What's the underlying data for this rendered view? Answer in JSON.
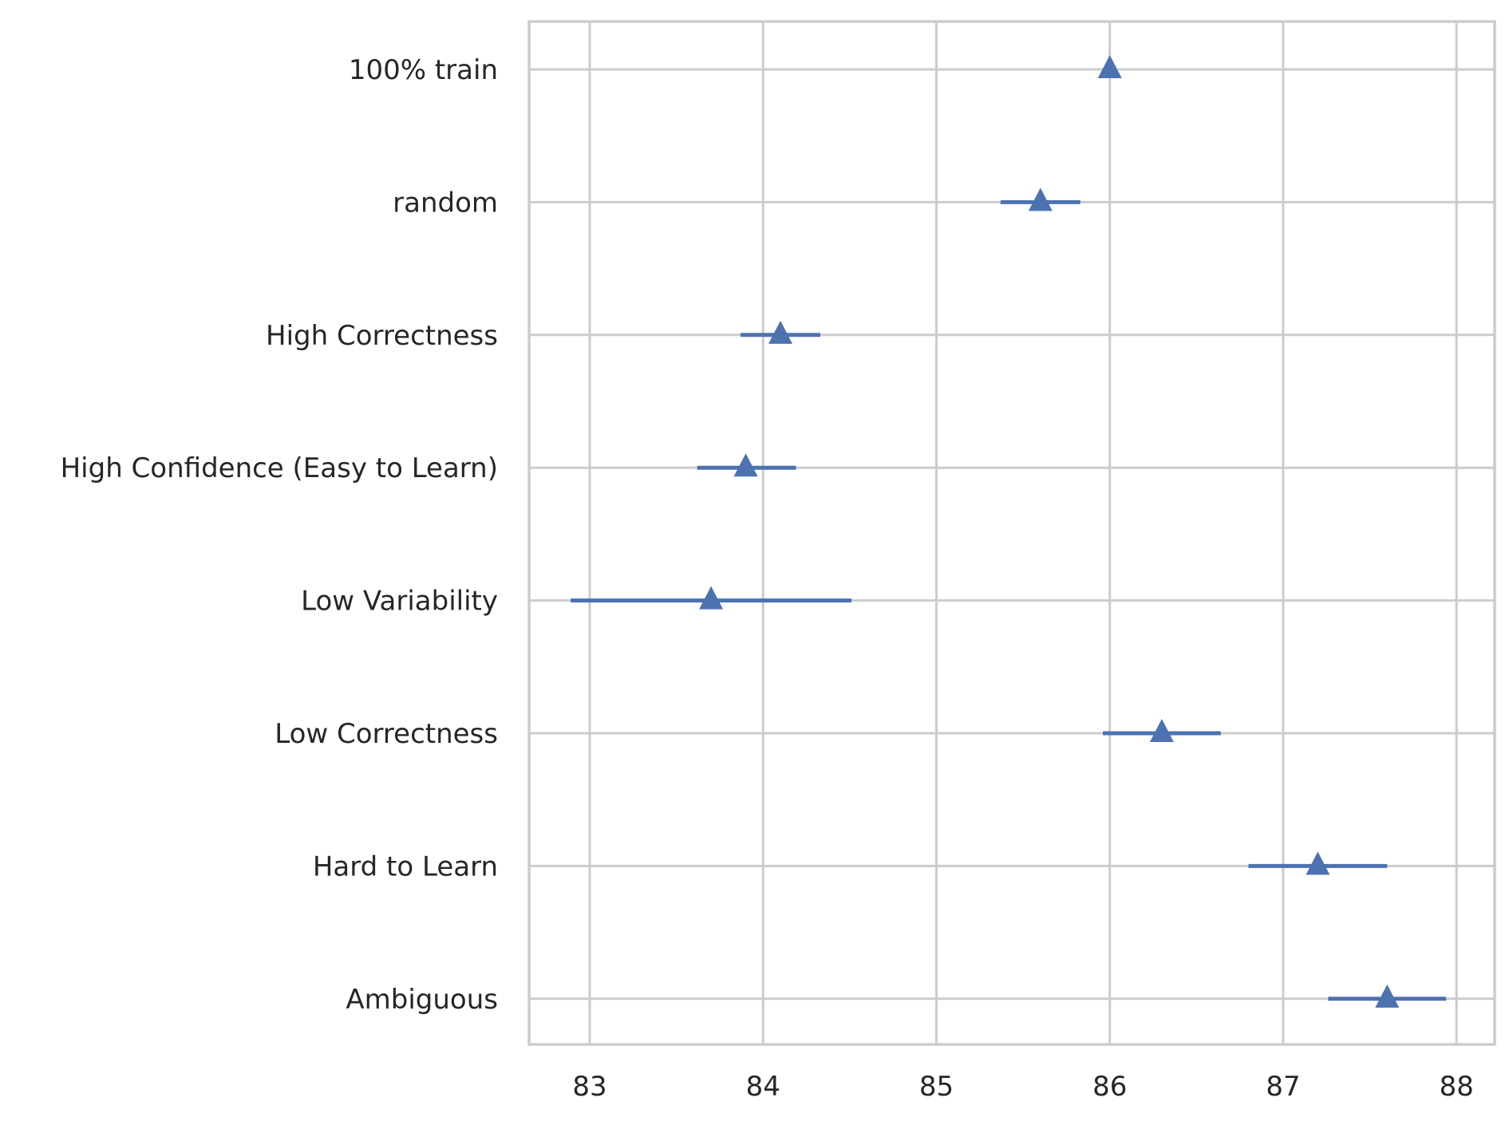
{
  "chart_data": {
    "type": "scatter",
    "orientation": "horizontal",
    "marker": "triangle-up",
    "title": "",
    "xlabel": "",
    "ylabel": "",
    "xlim": [
      82.65,
      88.22
    ],
    "xticks": [
      83,
      84,
      85,
      86,
      87,
      88
    ],
    "grid": true,
    "categories": [
      "100% train",
      "random",
      "High Correctness",
      "High Confidence (Easy to Learn)",
      "Low Variability",
      "Low Correctness",
      "Hard to Learn",
      "Ambiguous"
    ],
    "series": [
      {
        "values": [
          86.0,
          85.6,
          84.1,
          83.9,
          83.7,
          86.3,
          87.2,
          87.6
        ],
        "error_low": [
          86.0,
          85.37,
          83.87,
          83.62,
          82.89,
          85.96,
          86.8,
          87.26
        ],
        "error_high": [
          86.0,
          85.83,
          84.33,
          84.19,
          84.51,
          86.64,
          87.6,
          87.94
        ]
      }
    ]
  },
  "colors": {
    "series": "#4c72b0",
    "grid": "#cccccc",
    "text": "#262626",
    "background": "#ffffff"
  }
}
